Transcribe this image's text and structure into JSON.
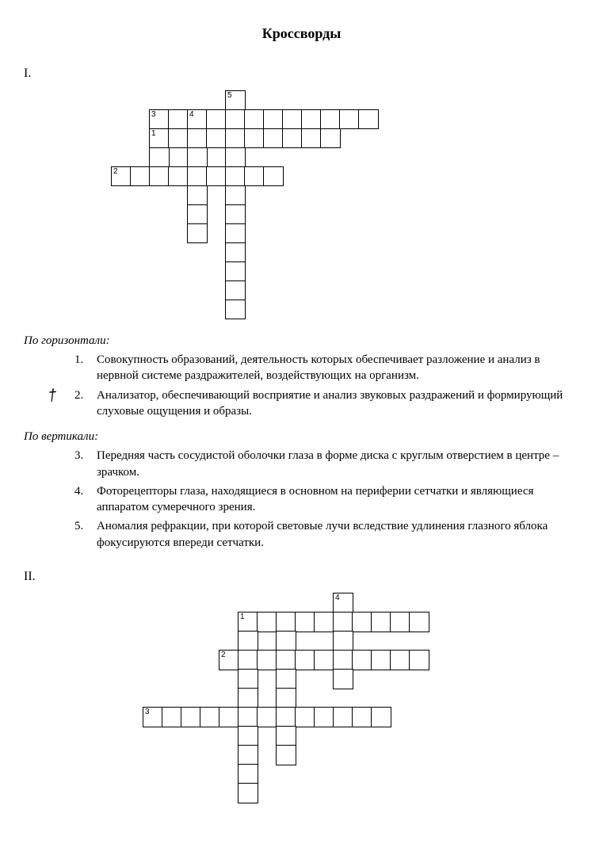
{
  "title": "Кроссворды",
  "section1": {
    "label": "I.",
    "horiz_heading": "По горизонтали:",
    "vert_heading": "По вертикали:",
    "hand_annotation": "†",
    "horiz": [
      {
        "n": "1.",
        "text": "Совокупность образований, деятельность которых обеспечивает разложение и анализ в нервной системе раздражителей, воздействующих на организм."
      },
      {
        "n": "2.",
        "text": "Анализатор, обеспечивающий восприятие и анализ звуковых раздражений и формирующий слуховые ощущения и образы."
      }
    ],
    "vert": [
      {
        "n": "3.",
        "text": "Передняя часть сосудистой оболочки глаза в форме диска с круглым отверстием в центре – зрачком."
      },
      {
        "n": "4.",
        "text": "Фоторецепторы глаза, находящиеся в основном на периферии сетчатки и являющиеся аппаратом сумеречного зрения."
      },
      {
        "n": "5.",
        "text": "Аномалия рефракции, при которой световые лучи вследствие удлинения глазного яблока фокусируются впереди сетчатки."
      }
    ]
  },
  "section2": {
    "label": "II."
  },
  "crossword1": {
    "cell_size": 24,
    "cols": 14,
    "rows": 12,
    "border_color": "#000000",
    "background_color": "#ffffff",
    "cells": [
      [
        6,
        0
      ],
      [
        2,
        1
      ],
      [
        3,
        1
      ],
      [
        4,
        1
      ],
      [
        5,
        1
      ],
      [
        6,
        1
      ],
      [
        7,
        1
      ],
      [
        8,
        1
      ],
      [
        9,
        1
      ],
      [
        10,
        1
      ],
      [
        11,
        1
      ],
      [
        12,
        1
      ],
      [
        13,
        1
      ],
      [
        2,
        2
      ],
      [
        3,
        2
      ],
      [
        4,
        2
      ],
      [
        5,
        2
      ],
      [
        6,
        2
      ],
      [
        7,
        2
      ],
      [
        8,
        2
      ],
      [
        9,
        2
      ],
      [
        10,
        2
      ],
      [
        11,
        2
      ],
      [
        2,
        3
      ],
      [
        4,
        3
      ],
      [
        6,
        3
      ],
      [
        0,
        4
      ],
      [
        1,
        4
      ],
      [
        2,
        4
      ],
      [
        3,
        4
      ],
      [
        4,
        4
      ],
      [
        5,
        4
      ],
      [
        6,
        4
      ],
      [
        7,
        4
      ],
      [
        8,
        4
      ],
      [
        4,
        5
      ],
      [
        6,
        5
      ],
      [
        4,
        6
      ],
      [
        6,
        6
      ],
      [
        4,
        7
      ],
      [
        6,
        7
      ],
      [
        6,
        8
      ],
      [
        6,
        9
      ],
      [
        6,
        10
      ],
      [
        6,
        11
      ]
    ],
    "numbers": [
      {
        "n": "5",
        "col": 6,
        "row": 0
      },
      {
        "n": "3",
        "col": 2,
        "row": 1
      },
      {
        "n": "4",
        "col": 4,
        "row": 1
      },
      {
        "n": "1",
        "col": 2,
        "row": 2
      },
      {
        "n": "2",
        "col": 0,
        "row": 4
      }
    ]
  },
  "crossword2": {
    "cell_size": 24,
    "cols": 15,
    "rows": 11,
    "border_color": "#000000",
    "background_color": "#ffffff",
    "cells": [
      [
        10,
        0
      ],
      [
        5,
        1
      ],
      [
        6,
        1
      ],
      [
        7,
        1
      ],
      [
        8,
        1
      ],
      [
        9,
        1
      ],
      [
        10,
        1
      ],
      [
        11,
        1
      ],
      [
        12,
        1
      ],
      [
        13,
        1
      ],
      [
        14,
        1
      ],
      [
        5,
        2
      ],
      [
        7,
        2
      ],
      [
        10,
        2
      ],
      [
        4,
        3
      ],
      [
        5,
        3
      ],
      [
        6,
        3
      ],
      [
        7,
        3
      ],
      [
        8,
        3
      ],
      [
        9,
        3
      ],
      [
        10,
        3
      ],
      [
        11,
        3
      ],
      [
        12,
        3
      ],
      [
        13,
        3
      ],
      [
        14,
        3
      ],
      [
        5,
        4
      ],
      [
        7,
        4
      ],
      [
        10,
        4
      ],
      [
        5,
        5
      ],
      [
        7,
        5
      ],
      [
        0,
        6
      ],
      [
        1,
        6
      ],
      [
        2,
        6
      ],
      [
        3,
        6
      ],
      [
        4,
        6
      ],
      [
        5,
        6
      ],
      [
        6,
        6
      ],
      [
        7,
        6
      ],
      [
        8,
        6
      ],
      [
        9,
        6
      ],
      [
        10,
        6
      ],
      [
        11,
        6
      ],
      [
        12,
        6
      ],
      [
        5,
        7
      ],
      [
        7,
        7
      ],
      [
        5,
        8
      ],
      [
        7,
        8
      ],
      [
        5,
        9
      ],
      [
        5,
        10
      ]
    ],
    "numbers": [
      {
        "n": "4",
        "col": 10,
        "row": 0
      },
      {
        "n": "1",
        "col": 5,
        "row": 1
      },
      {
        "n": "2",
        "col": 4,
        "row": 3
      },
      {
        "n": "3",
        "col": 0,
        "row": 6
      }
    ]
  }
}
